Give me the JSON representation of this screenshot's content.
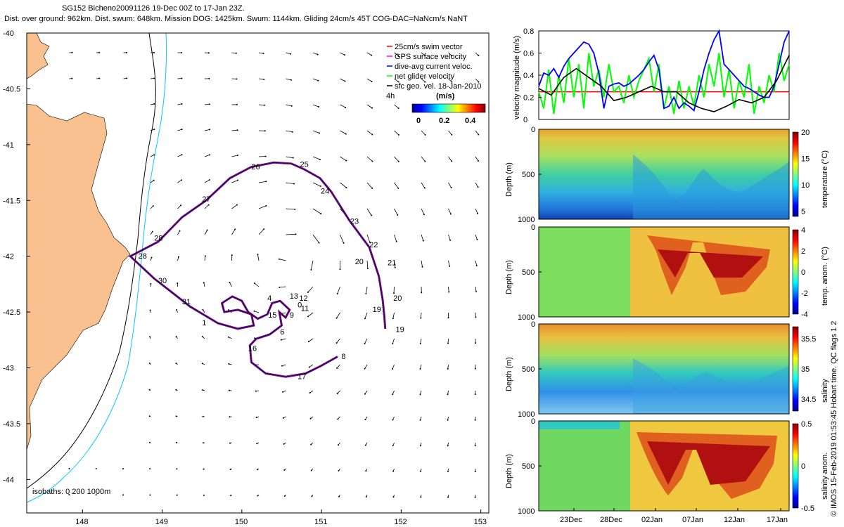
{
  "header": {
    "line1": "SG152 Bicheno20091126 19-Dec 00Z to 17-Jan 23Z.",
    "line2": "Dist. over ground: 962km. Dist. swum: 648km. Mission DOG: 1425km. Swum: 1144km. Gliding 24cm/s 45T COG-DAC=NaNcm/s NaNT"
  },
  "credit": "© IMOS 15-Feb-2019 01:53:45 Hobart time. QC flags 1  2",
  "chart_data": [
    {
      "type": "map",
      "name": "track-map",
      "xlim": [
        147.3,
        153.1
      ],
      "ylim": [
        -44.3,
        -40.0
      ],
      "xticks": [
        "148",
        "149",
        "150",
        "151",
        "152",
        "153"
      ],
      "yticks": [
        "-40",
        "-40.5",
        "-41",
        "-41.5",
        "-42",
        "-42.5",
        "-43",
        "-43.5",
        "-44"
      ],
      "legend": [
        "25cm/s swim vector",
        "GPS surface velocity",
        "dive-avg current veloc.",
        "net glider velocity",
        "sfc geo. vel. 18-Jan-2010"
      ],
      "legend_colors": [
        "#ff0000",
        "#ff00ff",
        "#0000ff",
        "#00ff00",
        "#000000"
      ],
      "colorbar": {
        "unit": "(m/s)",
        "ticks": [
          "0",
          "0.2",
          "0.4"
        ],
        "range": [
          0,
          0.5
        ]
      },
      "time_label": "4h",
      "isobaths_label": "isobaths: 0   200  1000m",
      "track": [
        [
          151.8,
          -42.65
        ],
        [
          151.79,
          -42.55
        ],
        [
          151.77,
          -42.4
        ],
        [
          151.72,
          -42.18
        ],
        [
          151.6,
          -41.92
        ],
        [
          151.35,
          -41.68
        ],
        [
          151.12,
          -41.42
        ],
        [
          150.98,
          -41.3
        ],
        [
          150.78,
          -41.22
        ],
        [
          150.62,
          -41.17
        ],
        [
          150.4,
          -41.16
        ],
        [
          150.12,
          -41.2
        ],
        [
          149.85,
          -41.3
        ],
        [
          149.55,
          -41.5
        ],
        [
          149.25,
          -41.65
        ],
        [
          148.95,
          -41.87
        ],
        [
          148.6,
          -42.0
        ],
        [
          148.9,
          -42.2
        ],
        [
          149.35,
          -42.45
        ],
        [
          149.7,
          -42.6
        ],
        [
          149.95,
          -42.65
        ],
        [
          150.15,
          -42.62
        ],
        [
          150.12,
          -42.52
        ],
        [
          149.95,
          -42.48
        ],
        [
          149.78,
          -42.5
        ],
        [
          149.75,
          -42.42
        ],
        [
          149.88,
          -42.36
        ],
        [
          150.0,
          -42.4
        ],
        [
          150.08,
          -42.5
        ],
        [
          150.2,
          -42.56
        ],
        [
          150.32,
          -42.52
        ],
        [
          150.38,
          -42.42
        ],
        [
          150.48,
          -42.4
        ],
        [
          150.6,
          -42.48
        ],
        [
          150.55,
          -42.55
        ],
        [
          150.47,
          -42.5
        ],
        [
          150.5,
          -42.62
        ],
        [
          150.35,
          -42.7
        ],
        [
          150.18,
          -42.74
        ],
        [
          150.1,
          -42.8
        ],
        [
          150.12,
          -42.95
        ],
        [
          150.3,
          -43.05
        ],
        [
          150.55,
          -43.08
        ],
        [
          150.8,
          -43.05
        ],
        [
          151.0,
          -42.98
        ],
        [
          151.2,
          -42.9
        ]
      ],
      "track_labels": [
        {
          "t": "25",
          "lon": 150.73,
          "lat": -41.2
        },
        {
          "t": "26",
          "lon": 150.12,
          "lat": -41.22
        },
        {
          "t": "24",
          "lon": 150.99,
          "lat": -41.44
        },
        {
          "t": "27",
          "lon": 149.5,
          "lat": -41.51
        },
        {
          "t": "23",
          "lon": 151.36,
          "lat": -41.71
        },
        {
          "t": "28",
          "lon": 148.9,
          "lat": -41.86
        },
        {
          "t": "22",
          "lon": 151.6,
          "lat": -41.92
        },
        {
          "t": "28",
          "lon": 148.7,
          "lat": -42.02
        },
        {
          "t": "20",
          "lon": 151.42,
          "lat": -42.07
        },
        {
          "t": "21",
          "lon": 151.83,
          "lat": -42.08
        },
        {
          "t": "30",
          "lon": 148.95,
          "lat": -42.24
        },
        {
          "t": "20",
          "lon": 151.9,
          "lat": -42.4
        },
        {
          "t": "13",
          "lon": 150.6,
          "lat": -42.38
        },
        {
          "t": "12",
          "lon": 150.72,
          "lat": -42.4
        },
        {
          "t": "4",
          "lon": 150.32,
          "lat": -42.4
        },
        {
          "t": "31",
          "lon": 149.25,
          "lat": -42.43
        },
        {
          "t": "0",
          "lon": 150.7,
          "lat": -42.46
        },
        {
          "t": "11",
          "lon": 150.74,
          "lat": -42.49
        },
        {
          "t": "19",
          "lon": 151.64,
          "lat": -42.5
        },
        {
          "t": "15",
          "lon": 150.33,
          "lat": -42.55
        },
        {
          "t": "9",
          "lon": 150.6,
          "lat": -42.55
        },
        {
          "t": "1",
          "lon": 149.5,
          "lat": -42.62
        },
        {
          "t": "6",
          "lon": 150.48,
          "lat": -42.7
        },
        {
          "t": "19",
          "lon": 151.93,
          "lat": -42.68
        },
        {
          "t": "16",
          "lon": 150.08,
          "lat": -42.85
        },
        {
          "t": "8",
          "lon": 151.25,
          "lat": -42.92
        },
        {
          "t": "17",
          "lon": 150.7,
          "lat": -43.1
        }
      ]
    },
    {
      "type": "line",
      "name": "velocity-panel",
      "ylabel": "velocity magnitude (m/s)",
      "ylim": [
        0,
        0.8
      ],
      "yticks": [
        "0",
        "0.2",
        "0.4",
        "0.6",
        "0.8"
      ],
      "reference_line": 0.25,
      "series": [
        {
          "name": "dive-avg current veloc.",
          "color": "#0000ff",
          "t": [
            0,
            2,
            4,
            6,
            8,
            10,
            12,
            14,
            16,
            18,
            20,
            22,
            24,
            26,
            28,
            30,
            32,
            34,
            36,
            38,
            40,
            42,
            44,
            46,
            48,
            50,
            52,
            54,
            56,
            58,
            60,
            62,
            64,
            66,
            68,
            70,
            72,
            74,
            76,
            78,
            80,
            82,
            84,
            86,
            88,
            90,
            92,
            94,
            96,
            98,
            100
          ],
          "values": [
            0.3,
            0.42,
            0.4,
            0.46,
            0.38,
            0.48,
            0.55,
            0.6,
            0.65,
            0.7,
            0.68,
            0.6,
            0.42,
            0.1,
            0.3,
            0.32,
            0.33,
            0.3,
            0.32,
            0.36,
            0.4,
            0.45,
            0.52,
            0.58,
            0.45,
            0.1,
            0.12,
            0.2,
            0.1,
            0.15,
            0.12,
            0.08,
            0.25,
            0.45,
            0.6,
            0.72,
            0.8,
            0.5,
            0.45,
            0.4,
            0.35,
            0.3,
            0.28,
            0.25,
            0.22,
            0.2,
            0.2,
            0.3,
            0.5,
            0.7,
            0.8
          ]
        },
        {
          "name": "net glider velocity",
          "color": "#00ff00",
          "t": [
            0,
            2,
            4,
            6,
            8,
            10,
            12,
            14,
            16,
            18,
            20,
            22,
            24,
            26,
            28,
            30,
            32,
            34,
            36,
            38,
            40,
            42,
            44,
            46,
            48,
            50,
            52,
            54,
            56,
            58,
            60,
            62,
            64,
            66,
            68,
            70,
            72,
            74,
            76,
            78,
            80,
            82,
            84,
            86,
            88,
            90,
            92,
            94,
            96,
            98,
            100
          ],
          "values": [
            0.25,
            0.1,
            0.45,
            0.05,
            0.4,
            0.15,
            0.55,
            0.2,
            0.5,
            0.1,
            0.6,
            0.3,
            0.45,
            0.2,
            0.5,
            0.25,
            0.3,
            0.15,
            0.4,
            0.2,
            0.35,
            0.45,
            0.55,
            0.25,
            0.5,
            0.1,
            0.3,
            0.05,
            0.35,
            0.1,
            0.3,
            0.12,
            0.4,
            0.2,
            0.5,
            0.3,
            0.6,
            0.2,
            0.45,
            0.1,
            0.35,
            0.2,
            0.5,
            0.05,
            0.3,
            0.15,
            0.4,
            0.25,
            0.6,
            0.35,
            0.5
          ]
        },
        {
          "name": "sfc geo. vel.",
          "color": "#000000",
          "t": [
            0,
            5,
            10,
            15,
            20,
            25,
            30,
            35,
            40,
            45,
            50,
            55,
            60,
            65,
            70,
            75,
            80,
            85,
            90,
            95,
            100
          ],
          "values": [
            0.28,
            0.22,
            0.38,
            0.46,
            0.38,
            0.3,
            0.17,
            0.2,
            0.25,
            0.3,
            0.25,
            0.25,
            0.15,
            0.1,
            0.07,
            0.12,
            0.18,
            0.15,
            0.2,
            0.35,
            0.58
          ]
        }
      ]
    },
    {
      "type": "heatmap",
      "name": "temperature-panel",
      "ylabel": "Depth (m)",
      "yticks": [
        "0",
        "500",
        "1000"
      ],
      "colorbar_label": "temperature (°C)",
      "colorbar_ticks": [
        "20",
        "15",
        "10",
        "5"
      ],
      "range": [
        4,
        20
      ]
    },
    {
      "type": "heatmap",
      "name": "temp-anomaly-panel",
      "ylabel": "Depth (m)",
      "yticks": [
        "0",
        "500",
        "1000"
      ],
      "colorbar_label": "temp. anom. (°C)",
      "colorbar_ticks": [
        "4",
        "2",
        "0",
        "-2",
        "-4"
      ],
      "range": [
        -4,
        4
      ]
    },
    {
      "type": "heatmap",
      "name": "salinity-panel",
      "ylabel": "Depth (m)",
      "yticks": [
        "0",
        "500",
        "1000"
      ],
      "colorbar_label": "salinity",
      "colorbar_ticks": [
        "35.5",
        "35",
        "34.5"
      ],
      "range": [
        34.3,
        35.7
      ]
    },
    {
      "type": "heatmap",
      "name": "salinity-anomaly-panel",
      "ylabel": "Depth (m)",
      "yticks": [
        "0",
        "500",
        "1000"
      ],
      "colorbar_label": "salinity anom.",
      "colorbar_ticks": [
        "0.5",
        "0",
        "-0.5"
      ],
      "range": [
        -0.5,
        0.5
      ],
      "xticks": [
        "23Dec",
        "28Dec",
        "02Jan",
        "07Jan",
        "12Jan",
        "17Jan"
      ]
    }
  ]
}
